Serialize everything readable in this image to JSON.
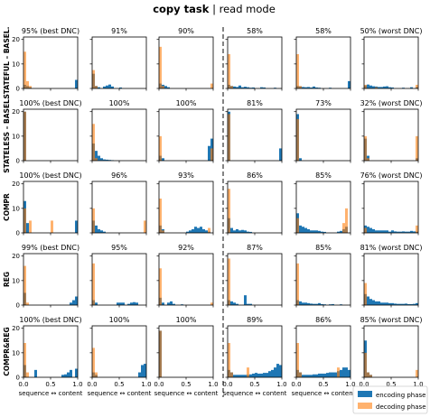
{
  "title": {
    "main": "copy task",
    "sep": " | ",
    "sub": "read mode"
  },
  "colors": {
    "encoding": "#1f77b4",
    "decoding": "#ff7f0e"
  },
  "legend": {
    "position": "bottom-right",
    "encoding": "encoding phase",
    "decoding": "decoding phase"
  },
  "xlabel": "sequence ↔ content",
  "x_ticks": [
    "0.0",
    "0.5",
    "1.0"
  ],
  "rows": [
    {
      "label": "STATEFUL – BASEL.",
      "y_ticks": [
        "0",
        "10",
        "20"
      ]
    },
    {
      "label": "STATELESS – BASEL.",
      "y_ticks": [
        "0",
        "10",
        "20"
      ]
    },
    {
      "label": "COMPR",
      "y_ticks": [
        "0",
        "10",
        "20"
      ]
    },
    {
      "label": "REG",
      "y_ticks": [
        "0",
        "10",
        "20"
      ]
    },
    {
      "label": "COMPR&REG",
      "y_ticks": [
        "0",
        "10",
        "20"
      ]
    }
  ],
  "chart_data": {
    "type": "bar",
    "bins": 20,
    "x_range": [
      0,
      1
    ],
    "ylim": [
      0,
      21
    ],
    "panels": [
      {
        "title": "95% (best DNC)",
        "enc": {
          "0": 1.5,
          "1": 1,
          "2": 0.5,
          "19": 3.5
        },
        "dec": {
          "0": 15,
          "1": 3,
          "2": 1
        }
      },
      {
        "title": "91%",
        "enc": {
          "0": 6,
          "1": 1,
          "2": 0.5,
          "4": 0.8,
          "5": 1.2,
          "6": 1.6,
          "7": 0.8,
          "10": 0.4
        },
        "dec": {
          "0": 7.5,
          "1": 1
        }
      },
      {
        "title": "90%",
        "enc": {
          "0": 2,
          "1": 1.5,
          "2": 1,
          "3": 0.5
        },
        "dec": {
          "0": 17,
          "1": 1,
          "19": 2
        }
      },
      {
        "title": "58%",
        "enc": {
          "0": 1.5,
          "1": 1,
          "2": 0.8,
          "3": 0.6,
          "4": 1.2,
          "5": 0.5,
          "6": 0.7,
          "7": 0.5,
          "8": 0.3,
          "9": 0.4,
          "12": 0.5,
          "13": 0.4,
          "17": 0.3
        },
        "dec": {
          "0": 14,
          "1": 1
        }
      },
      {
        "title": "58%",
        "enc": {
          "0": 1,
          "1": 0.8,
          "2": 0.6,
          "3": 0.5,
          "4": 0.6,
          "5": 0.4,
          "6": 0.8,
          "7": 0.4,
          "8": 0.3,
          "12": 0.3,
          "19": 3
        },
        "dec": {
          "0": 14,
          "1": 1
        }
      },
      {
        "title": "50% (worst DNC)",
        "enc": {
          "0": 1.2,
          "1": 1.6,
          "2": 1.2,
          "3": 0.9,
          "4": 0.8,
          "5": 0.6,
          "6": 0.6,
          "7": 0.8,
          "8": 0.9,
          "9": 0.5,
          "10": 0.4,
          "14": 0.3,
          "17": 0.5,
          "19": 0.5
        },
        "dec": {
          "0": 1.5,
          "4": 0.5,
          "19": 1.5
        }
      },
      {
        "title": "100% (best DNC)",
        "enc": {
          "0": 20
        },
        "dec": {
          "0": 20
        }
      },
      {
        "title": "100%",
        "enc": {
          "0": 7,
          "1": 4,
          "2": 2,
          "3": 1,
          "4": 0.5,
          "5": 0.4,
          "6": 0.3,
          "7": 0.2
        },
        "dec": {
          "0": 15,
          "1": 1
        }
      },
      {
        "title": "100%",
        "enc": {
          "0": 2,
          "1": 1,
          "18": 6,
          "19": 9
        },
        "dec": {
          "0": 10,
          "19": 5
        }
      },
      {
        "title": "81%",
        "enc": {
          "0": 20,
          "19": 5
        },
        "dec": {
          "0": 19
        }
      },
      {
        "title": "73%",
        "enc": {
          "0": 19,
          "1": 1
        },
        "dec": {
          "0": 17
        }
      },
      {
        "title": "32% (worst DNC)",
        "enc": {
          "0": 9,
          "1": 2,
          "19": 1
        },
        "dec": {
          "0": 10,
          "1": 1,
          "19": 10
        }
      },
      {
        "title": "100% (best DNC)",
        "enc": {
          "0": 13,
          "1": 4,
          "19": 5
        },
        "dec": {
          "0": 10,
          "2": 5,
          "10": 5
        }
      },
      {
        "title": "96%",
        "enc": {
          "0": 5,
          "1": 3,
          "2": 1.5,
          "3": 1,
          "4": 0.5
        },
        "dec": {
          "0": 10,
          "19": 5
        }
      },
      {
        "title": "93%",
        "enc": {
          "0": 3,
          "1": 1.5,
          "10": 0.5,
          "11": 1,
          "12": 1.5,
          "13": 2.5,
          "14": 2,
          "15": 2.5,
          "16": 1.5,
          "17": 1,
          "18": 0.5
        },
        "dec": {
          "0": 14,
          "1": 1,
          "18": 2
        }
      },
      {
        "title": "86%",
        "enc": {
          "0": 6,
          "1": 2,
          "2": 1,
          "3": 1.5,
          "4": 1,
          "5": 1.2,
          "6": 1,
          "7": 0.5,
          "8": 0.4
        },
        "dec": {
          "0": 18
        }
      },
      {
        "title": "85%",
        "enc": {
          "0": 8,
          "1": 3,
          "2": 2.5,
          "3": 2,
          "4": 1.5,
          "5": 1,
          "6": 1,
          "7": 1,
          "8": 0.8,
          "9": 0.5,
          "10": 0.4,
          "15": 0.5,
          "16": 0.8,
          "17": 1.5,
          "18": 2.5
        },
        "dec": {
          "0": 6,
          "17": 4,
          "18": 10
        }
      },
      {
        "title": "76% (worst DNC)",
        "enc": {
          "0": 3,
          "1": 2.5,
          "2": 2,
          "3": 1.5,
          "4": 1,
          "5": 1,
          "6": 1,
          "7": 1,
          "8": 1,
          "9": 0.5,
          "10": 1,
          "11": 0.6,
          "12": 0.5,
          "13": 0.5,
          "14": 0.6,
          "15": 0.5,
          "16": 0.5,
          "17": 0.8,
          "18": 0.6,
          "19": 0.5
        },
        "dec": {
          "0": 2,
          "19": 3
        }
      },
      {
        "title": "99% (best DNC)",
        "enc": {
          "0": 5,
          "17": 1,
          "18": 2,
          "19": 3.5
        },
        "dec": {
          "0": 16,
          "1": 1
        }
      },
      {
        "title": "95%",
        "enc": {
          "0": 2,
          "1": 1,
          "9": 1,
          "10": 1,
          "11": 1,
          "13": 0.5,
          "14": 1,
          "15": 1.2,
          "16": 1
        },
        "dec": {
          "0": 17
        }
      },
      {
        "title": "92%",
        "enc": {
          "0": 3,
          "1": 1,
          "3": 1,
          "4": 1.5,
          "5": 0.5,
          "8": 0.3
        },
        "dec": {
          "0": 15,
          "19": 1
        }
      },
      {
        "title": "87%",
        "enc": {
          "0": 2,
          "1": 1.5,
          "2": 1,
          "3": 0.5,
          "6": 4,
          "7": 0.5,
          "8": 0.5
        },
        "dec": {
          "0": 19
        }
      },
      {
        "title": "85%",
        "enc": {
          "0": 2,
          "1": 1.5,
          "2": 1,
          "3": 1,
          "4": 0.8,
          "5": 0.6,
          "6": 0.5,
          "7": 0.5,
          "8": 0.8,
          "9": 0.4,
          "10": 0.3,
          "12": 0.3,
          "13": 0.4,
          "16": 0.3
        },
        "dec": {
          "0": 17
        }
      },
      {
        "title": "81% (worst DNC)",
        "enc": {
          "0": 4.5,
          "1": 3.5,
          "2": 2.5,
          "3": 2,
          "4": 1.5,
          "5": 1.5,
          "6": 1,
          "7": 1,
          "8": 1,
          "9": 0.8,
          "10": 0.8,
          "11": 0.6,
          "12": 0.5,
          "13": 0.5,
          "14": 0.5,
          "15": 0.6,
          "16": 0.4,
          "17": 0.4,
          "18": 0.5,
          "19": 0.8
        },
        "dec": {
          "0": 9
        }
      },
      {
        "title": "100% (best DNC)",
        "enc": {
          "0": 5,
          "4": 3,
          "14": 1,
          "15": 1.2,
          "16": 2,
          "17": 3,
          "19": 3.5
        },
        "dec": {
          "0": 14,
          "1": 2
        }
      },
      {
        "title": "100%",
        "enc": {
          "0": 2,
          "1": 1,
          "17": 2,
          "18": 5,
          "19": 5.5
        },
        "dec": {
          "0": 12,
          "1": 2
        }
      },
      {
        "title": "100%",
        "enc": {
          "0": 19
        },
        "dec": {
          "0": 19
        }
      },
      {
        "title": "89%",
        "enc": {
          "0": 3,
          "1": 2,
          "2": 1,
          "3": 1,
          "4": 1,
          "5": 1,
          "6": 1,
          "7": 1,
          "8": 1.2,
          "9": 1.5,
          "10": 1.8,
          "11": 1.5,
          "12": 1.5,
          "13": 1.8,
          "14": 1.8,
          "15": 2.5,
          "16": 3,
          "17": 4,
          "18": 5.5,
          "19": 5
        },
        "dec": {
          "0": 14,
          "1": 2,
          "7": 4
        }
      },
      {
        "title": "86%",
        "enc": {
          "0": 3,
          "1": 2,
          "2": 1,
          "3": 1,
          "4": 1,
          "5": 1,
          "6": 1.2,
          "7": 1.2,
          "8": 1.5,
          "9": 1.5,
          "10": 1.5,
          "11": 1.8,
          "12": 2,
          "13": 2,
          "14": 2,
          "15": 2.5,
          "16": 3,
          "17": 4,
          "18": 4,
          "19": 3
        },
        "dec": {
          "0": 14,
          "1": 2,
          "15": 4
        }
      },
      {
        "title": "85% (worst DNC)",
        "enc": {
          "0": 15,
          "1": 2,
          "2": 1
        },
        "dec": {
          "0": 10,
          "1": 2,
          "2": 1,
          "19": 3
        }
      }
    ]
  }
}
